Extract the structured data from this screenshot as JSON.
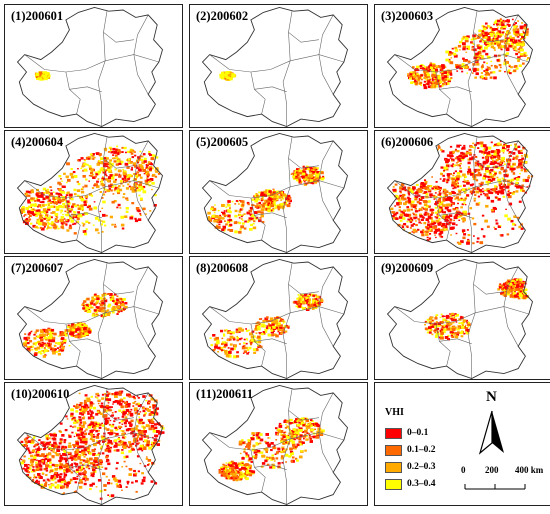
{
  "panels": [
    {
      "label": "(1)200601",
      "severity": 0.04,
      "focus": "west"
    },
    {
      "label": "(2)200602",
      "severity": 0.03,
      "focus": "west"
    },
    {
      "label": "(3)200603",
      "severity": 0.45,
      "focus": "northeast"
    },
    {
      "label": "(4)200604",
      "severity": 0.55,
      "focus": "broad"
    },
    {
      "label": "(5)200605",
      "severity": 0.3,
      "focus": "southwest"
    },
    {
      "label": "(6)200606",
      "severity": 0.85,
      "focus": "broad"
    },
    {
      "label": "(7)200607",
      "severity": 0.28,
      "focus": "southwest-north"
    },
    {
      "label": "(8)200608",
      "severity": 0.22,
      "focus": "southwest"
    },
    {
      "label": "(9)200609",
      "severity": 0.22,
      "focus": "east-west"
    },
    {
      "label": "(10)200610",
      "severity": 0.95,
      "focus": "broad"
    },
    {
      "label": "(11)200611",
      "severity": 0.35,
      "focus": "central"
    }
  ],
  "legend": {
    "title": "VHI",
    "classes": [
      {
        "label": "0–0.1",
        "color": "#ff0000"
      },
      {
        "label": "0.1–0.2",
        "color": "#ff6a00"
      },
      {
        "label": "0.2–0.3",
        "color": "#ffaa00"
      },
      {
        "label": "0.3–0.4",
        "color": "#ffff00"
      }
    ]
  },
  "north_arrow": {
    "letter": "N"
  },
  "scale_bar": {
    "ticks": [
      "0",
      "200",
      "400 km"
    ]
  },
  "colors": {
    "border": "#222222",
    "outline": "#333333",
    "internal": "#666666"
  }
}
